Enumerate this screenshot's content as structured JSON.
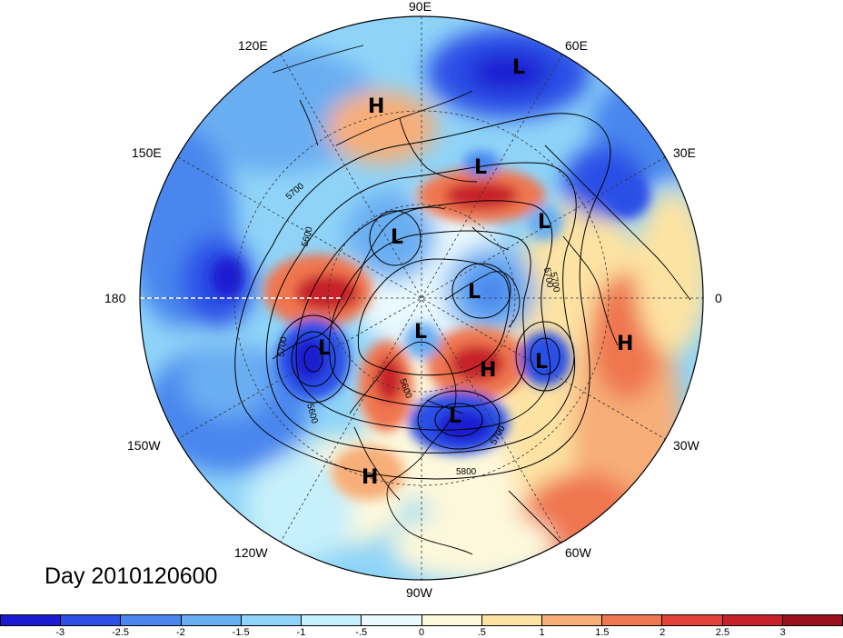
{
  "title": "Day 2010120600",
  "longitude_labels": {
    "lon_90e": "90E",
    "lon_60e": "60E",
    "lon_30e": "30E",
    "lon_0": "0",
    "lon_30w": "30W",
    "lon_60w": "60W",
    "lon_90w": "90W",
    "lon_120w": "120W",
    "lon_150w": "150W",
    "lon_180": "180",
    "lon_150e": "150E",
    "lon_120e": "120E"
  },
  "pressure_centers": [
    {
      "type": "H",
      "region": "east-siberia"
    },
    {
      "type": "L",
      "region": "central-asia-north"
    },
    {
      "type": "L",
      "region": "west-siberia"
    },
    {
      "type": "L",
      "region": "east-siberian-sea"
    },
    {
      "type": "L",
      "region": "kara-sea"
    },
    {
      "type": "L",
      "region": "barents-sea"
    },
    {
      "type": "L",
      "region": "gulf-of-alaska"
    },
    {
      "type": "L",
      "region": "arctic-canada"
    },
    {
      "type": "H",
      "region": "greenland"
    },
    {
      "type": "L",
      "region": "north-atlantic"
    },
    {
      "type": "L",
      "region": "eastern-canada"
    },
    {
      "type": "H",
      "region": "western-us"
    },
    {
      "type": "H",
      "region": "north-africa"
    }
  ],
  "contour_labels": [
    "5700",
    "5600",
    "5700",
    "5600",
    "5700",
    "5700",
    "5800",
    "5700",
    "5600"
  ],
  "colorbar": {
    "ticks": [
      "-3",
      "-2.5",
      "-2",
      "-1.5",
      "-1",
      "-.5",
      "0",
      ".5",
      "1",
      "1.5",
      "2",
      "2.5",
      "3"
    ],
    "colors": [
      "#1a1ad1",
      "#2c4fe6",
      "#4a86ee",
      "#6aaef2",
      "#8fd4f8",
      "#c6f0fb",
      "#eaf9fd",
      "#fdf8dc",
      "#fde3a3",
      "#f7ae78",
      "#ef7650",
      "#e2423a",
      "#c7202a",
      "#9c0f1e"
    ]
  }
}
